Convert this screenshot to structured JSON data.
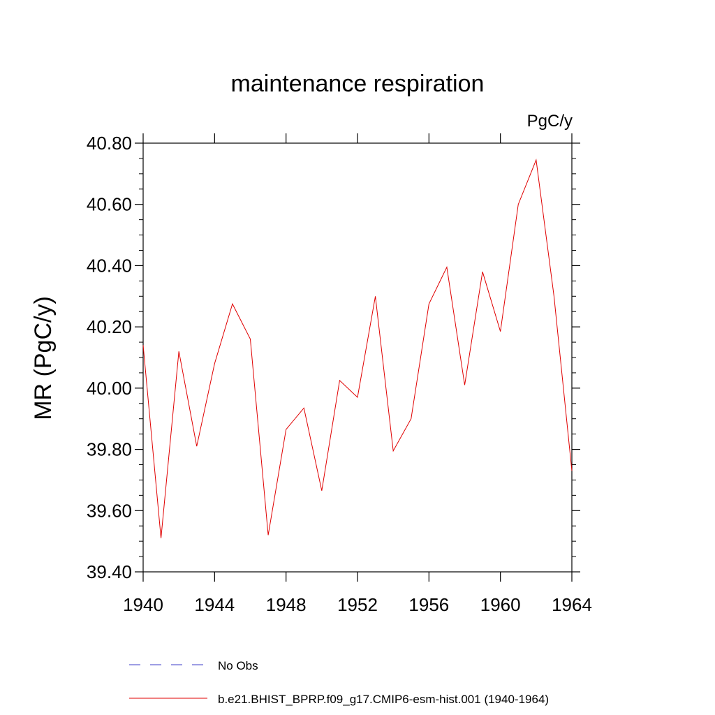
{
  "chart_data": {
    "type": "line",
    "title": "maintenance respiration",
    "units_label": "PgC/y",
    "ylabel": "MR  (PgC/y)",
    "xlabel": "",
    "xlim": [
      1940,
      1964
    ],
    "ylim": [
      39.4,
      40.8
    ],
    "x_ticks": [
      "1940",
      "1944",
      "1948",
      "1952",
      "1956",
      "1960",
      "1964"
    ],
    "y_ticks": [
      "39.40",
      "39.60",
      "39.80",
      "40.00",
      "40.20",
      "40.40",
      "40.60",
      "40.80"
    ],
    "grid": false,
    "legend_position": "bottom-left",
    "series": [
      {
        "name": "No Obs",
        "color": "#3c3cc8",
        "style": "dashed",
        "x": [],
        "values": []
      },
      {
        "name": "b.e21.BHIST_BPRP.f09_g17.CMIP6-esm-hist.001 (1940-1964)",
        "color": "#e00000",
        "style": "solid",
        "x": [
          1940,
          1941,
          1942,
          1943,
          1944,
          1945,
          1946,
          1947,
          1948,
          1949,
          1950,
          1951,
          1952,
          1953,
          1954,
          1955,
          1956,
          1957,
          1958,
          1959,
          1960,
          1961,
          1962,
          1963,
          1964
        ],
        "values": [
          40.14,
          39.51,
          40.12,
          39.81,
          40.08,
          40.275,
          40.16,
          39.52,
          39.865,
          39.935,
          39.665,
          40.025,
          39.97,
          40.3,
          39.795,
          39.9,
          40.275,
          40.395,
          40.01,
          40.38,
          40.185,
          40.6,
          40.745,
          40.3,
          39.73
        ]
      }
    ]
  }
}
